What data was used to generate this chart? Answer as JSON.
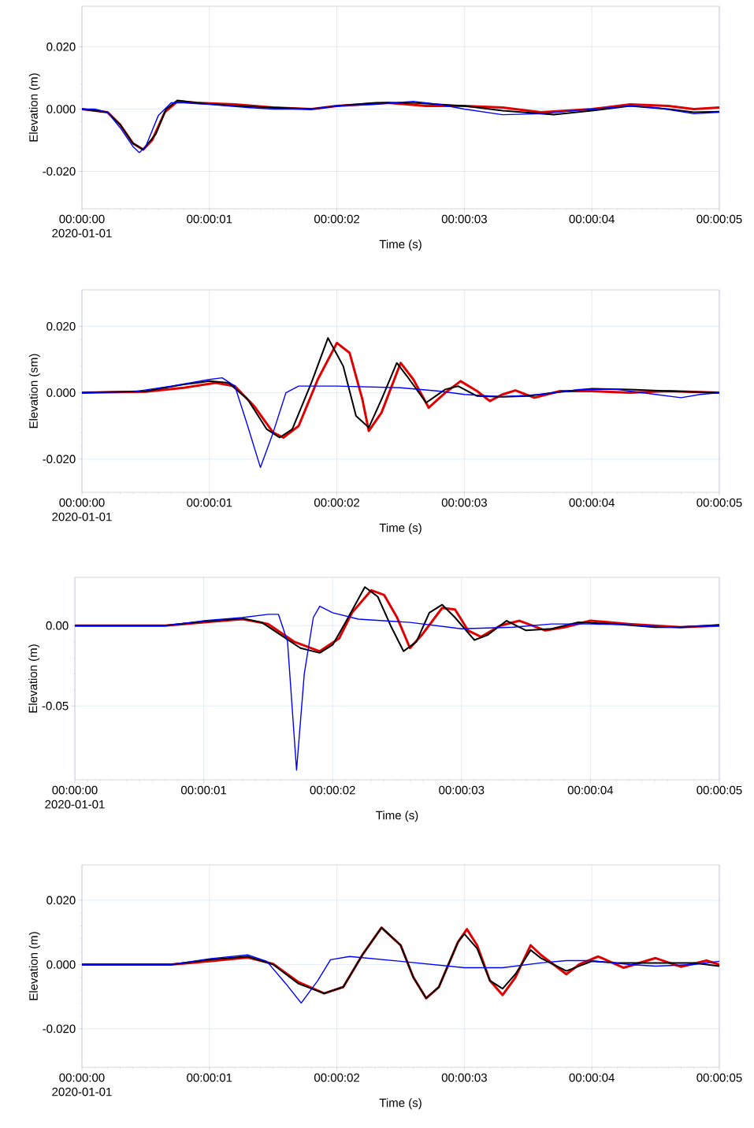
{
  "chart_data": [
    {
      "type": "line",
      "xlabel": "Time (s)",
      "ylabel": "Elevation (m)",
      "xlim": [
        0,
        5
      ],
      "ylim": [
        -0.032,
        0.033
      ],
      "grid": true,
      "xticks": [
        {
          "value": 0,
          "label": "00:00:00 2020-01-01"
        },
        {
          "value": 1,
          "label": "00:00:01"
        },
        {
          "value": 2,
          "label": "00:00:02"
        },
        {
          "value": 3,
          "label": "00:00:03"
        },
        {
          "value": 4,
          "label": "00:00:04"
        },
        {
          "value": 5,
          "label": "00:00:05"
        }
      ],
      "yticks": [
        {
          "value": -0.02,
          "label": "-0.020"
        },
        {
          "value": 0,
          "label": "0.000"
        },
        {
          "value": 0.02,
          "label": "0.020"
        }
      ],
      "series": [
        {
          "color": "#e00000",
          "x": [
            0,
            0.2,
            0.3,
            0.4,
            0.48,
            0.55,
            0.65,
            0.75,
            0.9,
            1.2,
            1.5,
            1.8,
            2.0,
            2.4,
            2.7,
            3.0,
            3.3,
            3.6,
            4.0,
            4.3,
            4.6,
            4.8,
            5.0
          ],
          "values": [
            0,
            -0.001,
            -0.005,
            -0.011,
            -0.013,
            -0.01,
            -0.001,
            0.0025,
            0.002,
            0.0015,
            0.0005,
            0,
            0.001,
            0.002,
            0.001,
            0.001,
            0.0005,
            -0.001,
            0,
            0.0015,
            0.001,
            0,
            0.0005
          ]
        },
        {
          "color": "#000000",
          "x": [
            0,
            0.2,
            0.3,
            0.4,
            0.48,
            0.58,
            0.66,
            0.75,
            0.9,
            1.2,
            1.5,
            1.8,
            2.0,
            2.3,
            2.6,
            3.0,
            3.3,
            3.7,
            4.0,
            4.3,
            4.6,
            4.8,
            5.0
          ],
          "values": [
            0,
            -0.001,
            -0.005,
            -0.011,
            -0.013,
            -0.008,
            0,
            0.0028,
            0.002,
            0.001,
            0.0005,
            0,
            0.001,
            0.002,
            0.002,
            0.001,
            -0.0005,
            -0.0018,
            -0.0005,
            0.001,
            0,
            -0.001,
            -0.0008
          ]
        },
        {
          "color": "#0000ff",
          "x": [
            0,
            0.1,
            0.2,
            0.3,
            0.4,
            0.45,
            0.5,
            0.6,
            0.7,
            0.8,
            1.0,
            1.3,
            1.5,
            1.8,
            2.0,
            2.3,
            2.6,
            2.8,
            3.0,
            3.3,
            3.6,
            4.0,
            4.3,
            4.5,
            4.8,
            5.0
          ],
          "values": [
            0,
            0,
            -0.001,
            -0.006,
            -0.012,
            -0.014,
            -0.012,
            -0.002,
            0.002,
            0.002,
            0.0015,
            0.0005,
            0,
            0,
            0.001,
            0.0015,
            0.0025,
            0.0015,
            0,
            -0.0018,
            -0.0015,
            0,
            0.001,
            0.0005,
            -0.0015,
            -0.001
          ]
        }
      ]
    },
    {
      "type": "line",
      "xlabel": "Time (s)",
      "ylabel": "Elevation (sm)",
      "xlim": [
        0,
        5
      ],
      "ylim": [
        -0.03,
        0.031
      ],
      "grid": true,
      "xticks": [
        {
          "value": 0,
          "label": "00:00:00 2020-01-01"
        },
        {
          "value": 1,
          "label": "00:00:01"
        },
        {
          "value": 2,
          "label": "00:00:02"
        },
        {
          "value": 3,
          "label": "00:00:03"
        },
        {
          "value": 4,
          "label": "00:00:04"
        },
        {
          "value": 5,
          "label": "00:00:05"
        }
      ],
      "yticks": [
        {
          "value": -0.02,
          "label": "-0.020"
        },
        {
          "value": 0,
          "label": "0.000"
        },
        {
          "value": 0.02,
          "label": "0.020"
        }
      ],
      "series": [
        {
          "color": "#e00000",
          "x": [
            0,
            0.5,
            0.8,
            1.05,
            1.2,
            1.35,
            1.5,
            1.58,
            1.7,
            1.85,
            2.0,
            2.1,
            2.2,
            2.25,
            2.35,
            2.5,
            2.6,
            2.72,
            2.85,
            2.97,
            3.1,
            3.2,
            3.3,
            3.4,
            3.55,
            3.75,
            4.0,
            4.3,
            4.6,
            5.0
          ],
          "values": [
            0,
            0.0003,
            0.0015,
            0.003,
            0.002,
            -0.004,
            -0.012,
            -0.0135,
            -0.01,
            0.004,
            0.015,
            0.012,
            -0.002,
            -0.0115,
            -0.006,
            0.009,
            0.004,
            -0.0045,
            0,
            0.0035,
            0.0005,
            -0.0025,
            -0.0005,
            0.0007,
            -0.0015,
            0.0005,
            0.0005,
            0,
            0.0005,
            0
          ]
        },
        {
          "color": "#000000",
          "x": [
            0,
            0.5,
            0.8,
            1.0,
            1.15,
            1.3,
            1.45,
            1.55,
            1.65,
            1.8,
            1.93,
            2.05,
            2.15,
            2.25,
            2.35,
            2.47,
            2.55,
            2.7,
            2.85,
            2.95,
            3.1,
            3.3,
            3.5,
            3.7,
            4.0,
            4.3,
            4.6,
            5.0
          ],
          "values": [
            0,
            0.0005,
            0.0025,
            0.0035,
            0.003,
            -0.002,
            -0.011,
            -0.0135,
            -0.011,
            0.003,
            0.0165,
            0.008,
            -0.007,
            -0.0105,
            -0.002,
            0.009,
            0.005,
            -0.003,
            0.001,
            0.002,
            -0.001,
            -0.0012,
            -0.001,
            0,
            0.0012,
            0.001,
            0.0005,
            0
          ]
        },
        {
          "color": "#0000ff",
          "x": [
            0,
            0.4,
            0.7,
            1.0,
            1.1,
            1.2,
            1.3,
            1.4,
            1.5,
            1.6,
            1.7,
            2.0,
            2.5,
            2.8,
            3.0,
            3.3,
            3.6,
            3.9,
            4.2,
            4.5,
            4.7,
            4.85,
            5.0
          ],
          "values": [
            0,
            0.0003,
            0.002,
            0.004,
            0.0045,
            0.002,
            -0.01,
            -0.0225,
            -0.012,
            0,
            0.002,
            0.002,
            0.0015,
            0.0005,
            -0.0005,
            -0.0012,
            -0.0005,
            0.001,
            0.001,
            -0.0005,
            -0.0015,
            -0.0005,
            0
          ]
        }
      ]
    },
    {
      "type": "line",
      "xlabel": "Time (s)",
      "ylabel": "Elevation (m)",
      "xlim": [
        0,
        5
      ],
      "ylim": [
        -0.096,
        0.03
      ],
      "grid": true,
      "xticks": [
        {
          "value": 0,
          "label": "00:00:00 2020-01-01"
        },
        {
          "value": 1,
          "label": "00:00:01"
        },
        {
          "value": 2,
          "label": "00:00:02"
        },
        {
          "value": 3,
          "label": "00:00:03"
        },
        {
          "value": 4,
          "label": "00:00:04"
        },
        {
          "value": 5,
          "label": "00:00:05"
        }
      ],
      "yticks": [
        {
          "value": -0.05,
          "label": "-0.05"
        },
        {
          "value": 0,
          "label": "0.00"
        }
      ],
      "series": [
        {
          "color": "#e00000",
          "x": [
            0,
            0.7,
            1.0,
            1.3,
            1.5,
            1.7,
            1.9,
            2.05,
            2.15,
            2.3,
            2.4,
            2.5,
            2.6,
            2.7,
            2.85,
            2.95,
            3.05,
            3.15,
            3.3,
            3.45,
            3.65,
            3.8,
            4.0,
            4.3,
            4.5,
            4.7,
            5.0
          ],
          "values": [
            0,
            0,
            0.002,
            0.004,
            0.001,
            -0.01,
            -0.016,
            -0.008,
            0.008,
            0.022,
            0.019,
            0.005,
            -0.014,
            -0.005,
            0.011,
            0.01,
            -0.003,
            -0.007,
            0,
            0.003,
            -0.003,
            -0.001,
            0.003,
            0.001,
            0,
            -0.001,
            0
          ]
        },
        {
          "color": "#000000",
          "x": [
            0,
            0.7,
            1.0,
            1.3,
            1.45,
            1.6,
            1.75,
            1.9,
            2.0,
            2.1,
            2.25,
            2.35,
            2.45,
            2.55,
            2.65,
            2.75,
            2.85,
            2.95,
            3.1,
            3.2,
            3.35,
            3.5,
            3.7,
            3.9,
            4.2,
            4.5,
            4.7,
            5.0
          ],
          "values": [
            0,
            0,
            0.0025,
            0.0045,
            0.002,
            -0.006,
            -0.014,
            -0.017,
            -0.012,
            0.002,
            0.024,
            0.018,
            0,
            -0.016,
            -0.01,
            0.008,
            0.013,
            0.005,
            -0.009,
            -0.006,
            0.003,
            -0.003,
            -0.002,
            0.002,
            0.001,
            -0.001,
            -0.001,
            0.0005
          ]
        },
        {
          "color": "#0000ff",
          "x": [
            0,
            0.7,
            1.0,
            1.3,
            1.5,
            1.58,
            1.65,
            1.72,
            1.78,
            1.85,
            1.9,
            2.0,
            2.2,
            2.6,
            3.0,
            3.4,
            3.7,
            4.0,
            4.3,
            4.6,
            5.0
          ],
          "values": [
            0,
            0,
            0.003,
            0.005,
            0.007,
            0.007,
            -0.01,
            -0.09,
            -0.03,
            0.005,
            0.012,
            0.008,
            0.004,
            0.002,
            -0.002,
            -0.001,
            0.001,
            0.001,
            0.0005,
            -0.001,
            0
          ]
        }
      ]
    },
    {
      "type": "line",
      "xlabel": "Time (s)",
      "ylabel": "Elevation (m)",
      "xlim": [
        0,
        5
      ],
      "ylim": [
        -0.032,
        0.031
      ],
      "grid": true,
      "xticks": [
        {
          "value": 0,
          "label": "00:00:00 2020-01-01"
        },
        {
          "value": 1,
          "label": "00:00:01"
        },
        {
          "value": 2,
          "label": "00:00:02"
        },
        {
          "value": 3,
          "label": "00:00:03"
        },
        {
          "value": 4,
          "label": "00:00:04"
        },
        {
          "value": 5,
          "label": "00:00:05"
        }
      ],
      "yticks": [
        {
          "value": -0.02,
          "label": "-0.020"
        },
        {
          "value": 0,
          "label": "0.000"
        },
        {
          "value": 0.02,
          "label": "0.020"
        }
      ],
      "series": [
        {
          "color": "#e00000",
          "x": [
            0,
            0.7,
            1.0,
            1.3,
            1.5,
            1.7,
            1.9,
            2.05,
            2.2,
            2.35,
            2.5,
            2.6,
            2.7,
            2.8,
            2.95,
            3.02,
            3.1,
            3.2,
            3.3,
            3.4,
            3.52,
            3.6,
            3.8,
            3.9,
            4.05,
            4.25,
            4.5,
            4.7,
            4.9,
            5.0
          ],
          "values": [
            0,
            0,
            0.001,
            0.0022,
            0.0002,
            -0.0055,
            -0.009,
            -0.007,
            0.003,
            0.0115,
            0.006,
            -0.004,
            -0.0105,
            -0.007,
            0.007,
            0.011,
            0.006,
            -0.005,
            -0.0095,
            -0.004,
            0.006,
            0.003,
            -0.003,
            0,
            0.0025,
            -0.001,
            0.002,
            -0.0007,
            0.0012,
            0
          ]
        },
        {
          "color": "#000000",
          "x": [
            0,
            0.7,
            1.0,
            1.3,
            1.5,
            1.7,
            1.9,
            2.05,
            2.2,
            2.35,
            2.5,
            2.6,
            2.7,
            2.8,
            2.95,
            3.0,
            3.1,
            3.2,
            3.3,
            3.4,
            3.52,
            3.6,
            3.8,
            4.0,
            4.2,
            4.5,
            4.8,
            5.0
          ],
          "values": [
            0,
            0,
            0.0015,
            0.0025,
            0,
            -0.006,
            -0.009,
            -0.007,
            0.003,
            0.0115,
            0.006,
            -0.004,
            -0.0105,
            -0.007,
            0.007,
            0.0095,
            0.005,
            -0.005,
            -0.0075,
            -0.003,
            0.0045,
            0.002,
            -0.002,
            0.001,
            0.0005,
            0.0005,
            0.0005,
            -0.0005
          ]
        },
        {
          "color": "#0000ff",
          "x": [
            0,
            0.7,
            1.0,
            1.3,
            1.45,
            1.6,
            1.72,
            1.85,
            1.95,
            2.1,
            2.5,
            3.0,
            3.3,
            3.6,
            3.8,
            4.0,
            4.3,
            4.5,
            4.8,
            5.0
          ],
          "values": [
            0,
            0,
            0.0018,
            0.003,
            0.001,
            -0.006,
            -0.012,
            -0.005,
            0.0015,
            0.0025,
            0.001,
            -0.001,
            -0.001,
            0.0005,
            0.0012,
            0.0012,
            0,
            -0.0005,
            0,
            0.001
          ]
        }
      ]
    }
  ]
}
